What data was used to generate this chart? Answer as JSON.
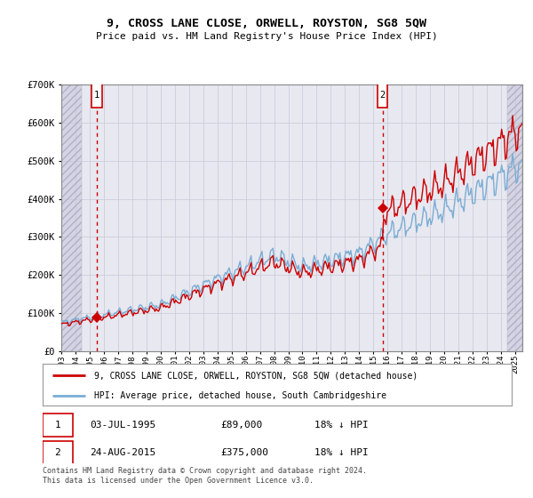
{
  "title": "9, CROSS LANE CLOSE, ORWELL, ROYSTON, SG8 5QW",
  "subtitle": "Price paid vs. HM Land Registry's House Price Index (HPI)",
  "ylim": [
    0,
    700000
  ],
  "yticks": [
    0,
    100000,
    200000,
    300000,
    400000,
    500000,
    600000,
    700000
  ],
  "ytick_labels": [
    "£0",
    "£100K",
    "£200K",
    "£300K",
    "£400K",
    "£500K",
    "£600K",
    "£700K"
  ],
  "transaction1": {
    "date_num": 1995.508,
    "price": 89000,
    "label": "1",
    "date_str": "03-JUL-1995",
    "pct": "18%"
  },
  "transaction2": {
    "date_num": 2015.648,
    "price": 375000,
    "label": "2",
    "date_str": "24-AUG-2015",
    "pct": "18%"
  },
  "legend_property": "9, CROSS LANE CLOSE, ORWELL, ROYSTON, SG8 5QW (detached house)",
  "legend_hpi": "HPI: Average price, detached house, South Cambridgeshire",
  "footnote": "Contains HM Land Registry data © Crown copyright and database right 2024.\nThis data is licensed under the Open Government Licence v3.0.",
  "property_color": "#cc0000",
  "hpi_color": "#7aadd4",
  "dashed_line_color": "#cc0000",
  "grid_color": "#c8c8d8",
  "bg_color": "#e8e8f0",
  "hatch_bg": "#d4d4e4",
  "xlim_left": 1993.0,
  "xlim_right": 2025.5,
  "hatch_left_end": 1994.42,
  "hatch_right_start": 2024.42
}
